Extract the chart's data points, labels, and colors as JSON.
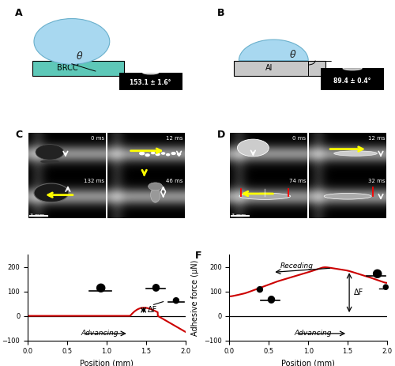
{
  "brcc_color": "#5ec8b8",
  "al_color": "#c8c8c8",
  "water_drop_color": "#a8d8f0",
  "bg_color": "#ffffff",
  "brcc_angle": "153.1 ± 1.6°",
  "al_angle": "89.4 ± 0.4°",
  "times_C": [
    "0 ms",
    "12 ms",
    "132 ms",
    "46 ms"
  ],
  "times_D": [
    "0 ms",
    "12 ms",
    "74 ms",
    "32 ms"
  ],
  "scale_bar": "3 mm",
  "ylabel_EF": "Adhesive force (μN)",
  "xlabel_EF": "Position (mm)",
  "ylim": [
    -100,
    250
  ],
  "xlim": [
    0.0,
    2.0
  ],
  "yticks": [
    -100,
    0,
    100,
    200
  ],
  "xticks": [
    0.0,
    0.5,
    1.0,
    1.5,
    2.0
  ],
  "line_color": "#cc0000",
  "advancing_label": "Advancing",
  "receding_label": "Receding",
  "deltaF_label": "ΔF"
}
